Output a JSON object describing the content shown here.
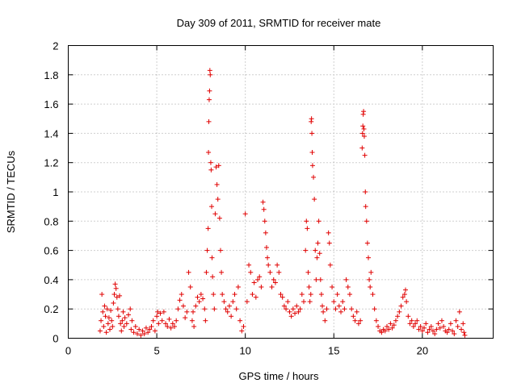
{
  "chart_data": {
    "type": "scatter",
    "title": "Day 309 of 2011, SRMTID for receiver mate",
    "xlabel": "GPS time / hours",
    "ylabel": "SRMTID / TECUs",
    "xlim": [
      0,
      24
    ],
    "ylim": [
      0,
      2
    ],
    "xticks": [
      0,
      5,
      10,
      15,
      20
    ],
    "xtick_labels": [
      "0",
      "5",
      "10",
      "15",
      "20"
    ],
    "yticks": [
      0,
      0.2,
      0.4,
      0.6,
      0.8,
      1,
      1.2,
      1.4,
      1.6,
      1.8,
      2
    ],
    "ytick_labels": [
      "0",
      "0.2",
      "0.4",
      "0.6",
      "0.8",
      "1",
      "1.2",
      "1.4",
      "1.6",
      "1.8",
      "2"
    ],
    "grid": true,
    "marker": "+",
    "color": "#e00000",
    "series": [
      {
        "name": "SRMTID",
        "points": [
          [
            1.8,
            0.05
          ],
          [
            1.85,
            0.12
          ],
          [
            1.9,
            0.3
          ],
          [
            1.95,
            0.18
          ],
          [
            2.0,
            0.08
          ],
          [
            2.05,
            0.22
          ],
          [
            2.1,
            0.15
          ],
          [
            2.15,
            0.04
          ],
          [
            2.2,
            0.2
          ],
          [
            2.25,
            0.1
          ],
          [
            2.3,
            0.14
          ],
          [
            2.35,
            0.06
          ],
          [
            2.4,
            0.19
          ],
          [
            2.45,
            0.12
          ],
          [
            2.5,
            0.08
          ],
          [
            2.55,
            0.24
          ],
          [
            2.6,
            0.3
          ],
          [
            2.65,
            0.37
          ],
          [
            2.7,
            0.34
          ],
          [
            2.75,
            0.28
          ],
          [
            2.8,
            0.2
          ],
          [
            2.85,
            0.15
          ],
          [
            2.9,
            0.29
          ],
          [
            2.95,
            0.1
          ],
          [
            3.0,
            0.05
          ],
          [
            3.05,
            0.12
          ],
          [
            3.1,
            0.18
          ],
          [
            3.15,
            0.08
          ],
          [
            3.2,
            0.14
          ],
          [
            3.3,
            0.1
          ],
          [
            3.4,
            0.16
          ],
          [
            3.5,
            0.2
          ],
          [
            3.55,
            0.06
          ],
          [
            3.6,
            0.12
          ],
          [
            3.7,
            0.04
          ],
          [
            3.8,
            0.08
          ],
          [
            3.9,
            0.03
          ],
          [
            4.0,
            0.06
          ],
          [
            4.1,
            0.02
          ],
          [
            4.2,
            0.05
          ],
          [
            4.3,
            0.03
          ],
          [
            4.4,
            0.07
          ],
          [
            4.5,
            0.04
          ],
          [
            4.6,
            0.06
          ],
          [
            4.7,
            0.08
          ],
          [
            4.8,
            0.12
          ],
          [
            4.9,
            0.05
          ],
          [
            5.0,
            0.15
          ],
          [
            5.05,
            0.18
          ],
          [
            5.1,
            0.1
          ],
          [
            5.2,
            0.17
          ],
          [
            5.3,
            0.12
          ],
          [
            5.4,
            0.18
          ],
          [
            5.5,
            0.1
          ],
          [
            5.6,
            0.08
          ],
          [
            5.7,
            0.13
          ],
          [
            5.8,
            0.07
          ],
          [
            5.9,
            0.1
          ],
          [
            6.0,
            0.08
          ],
          [
            6.1,
            0.12
          ],
          [
            6.2,
            0.2
          ],
          [
            6.3,
            0.26
          ],
          [
            6.4,
            0.3
          ],
          [
            6.5,
            0.22
          ],
          [
            6.6,
            0.14
          ],
          [
            6.7,
            0.18
          ],
          [
            6.8,
            0.45
          ],
          [
            6.9,
            0.35
          ],
          [
            7.0,
            0.12
          ],
          [
            7.05,
            0.18
          ],
          [
            7.1,
            0.08
          ],
          [
            7.2,
            0.22
          ],
          [
            7.3,
            0.28
          ],
          [
            7.4,
            0.25
          ],
          [
            7.5,
            0.3
          ],
          [
            7.6,
            0.27
          ],
          [
            7.7,
            0.2
          ],
          [
            7.75,
            0.12
          ],
          [
            7.8,
            0.45
          ],
          [
            7.85,
            0.6
          ],
          [
            7.9,
            0.75
          ],
          [
            7.92,
            1.27
          ],
          [
            7.94,
            1.48
          ],
          [
            7.96,
            1.63
          ],
          [
            7.98,
            1.69
          ],
          [
            8.0,
            1.83
          ],
          [
            8.02,
            1.8
          ],
          [
            8.05,
            1.2
          ],
          [
            8.07,
            1.15
          ],
          [
            8.1,
            0.9
          ],
          [
            8.12,
            0.55
          ],
          [
            8.15,
            0.42
          ],
          [
            8.2,
            0.3
          ],
          [
            8.25,
            0.2
          ],
          [
            8.3,
            0.85
          ],
          [
            8.35,
            1.17
          ],
          [
            8.4,
            1.05
          ],
          [
            8.45,
            0.95
          ],
          [
            8.5,
            1.18
          ],
          [
            8.55,
            0.82
          ],
          [
            8.6,
            0.6
          ],
          [
            8.65,
            0.45
          ],
          [
            8.7,
            0.3
          ],
          [
            8.8,
            0.25
          ],
          [
            8.9,
            0.2
          ],
          [
            9.0,
            0.18
          ],
          [
            9.1,
            0.22
          ],
          [
            9.2,
            0.15
          ],
          [
            9.3,
            0.25
          ],
          [
            9.4,
            0.3
          ],
          [
            9.5,
            0.2
          ],
          [
            9.6,
            0.35
          ],
          [
            9.7,
            0.12
          ],
          [
            9.8,
            0.05
          ],
          [
            9.9,
            0.08
          ],
          [
            10.0,
            0.85
          ],
          [
            10.1,
            0.25
          ],
          [
            10.2,
            0.5
          ],
          [
            10.3,
            0.45
          ],
          [
            10.4,
            0.3
          ],
          [
            10.5,
            0.38
          ],
          [
            10.6,
            0.28
          ],
          [
            10.7,
            0.4
          ],
          [
            10.8,
            0.42
          ],
          [
            10.9,
            0.35
          ],
          [
            11.0,
            0.93
          ],
          [
            11.05,
            0.88
          ],
          [
            11.1,
            0.8
          ],
          [
            11.15,
            0.72
          ],
          [
            11.2,
            0.62
          ],
          [
            11.25,
            0.55
          ],
          [
            11.3,
            0.5
          ],
          [
            11.4,
            0.45
          ],
          [
            11.5,
            0.35
          ],
          [
            11.6,
            0.4
          ],
          [
            11.7,
            0.38
          ],
          [
            11.8,
            0.5
          ],
          [
            11.9,
            0.45
          ],
          [
            12.0,
            0.3
          ],
          [
            12.1,
            0.28
          ],
          [
            12.2,
            0.22
          ],
          [
            12.3,
            0.2
          ],
          [
            12.4,
            0.25
          ],
          [
            12.5,
            0.18
          ],
          [
            12.6,
            0.15
          ],
          [
            12.7,
            0.2
          ],
          [
            12.8,
            0.17
          ],
          [
            12.9,
            0.22
          ],
          [
            13.0,
            0.18
          ],
          [
            13.1,
            0.2
          ],
          [
            13.2,
            0.3
          ],
          [
            13.3,
            0.25
          ],
          [
            13.4,
            0.6
          ],
          [
            13.45,
            0.8
          ],
          [
            13.5,
            0.75
          ],
          [
            13.55,
            0.45
          ],
          [
            13.6,
            0.35
          ],
          [
            13.65,
            0.25
          ],
          [
            13.7,
            0.3
          ],
          [
            13.72,
            1.48
          ],
          [
            13.74,
            1.5
          ],
          [
            13.76,
            1.4
          ],
          [
            13.78,
            1.27
          ],
          [
            13.8,
            1.18
          ],
          [
            13.85,
            1.1
          ],
          [
            13.9,
            0.95
          ],
          [
            13.95,
            0.6
          ],
          [
            14.0,
            0.4
          ],
          [
            14.05,
            0.55
          ],
          [
            14.1,
            0.65
          ],
          [
            14.15,
            0.8
          ],
          [
            14.2,
            0.58
          ],
          [
            14.25,
            0.4
          ],
          [
            14.3,
            0.3
          ],
          [
            14.35,
            0.22
          ],
          [
            14.4,
            0.18
          ],
          [
            14.5,
            0.12
          ],
          [
            14.6,
            0.2
          ],
          [
            14.7,
            0.72
          ],
          [
            14.75,
            0.65
          ],
          [
            14.8,
            0.5
          ],
          [
            14.9,
            0.35
          ],
          [
            15.0,
            0.25
          ],
          [
            15.1,
            0.2
          ],
          [
            15.2,
            0.3
          ],
          [
            15.3,
            0.22
          ],
          [
            15.4,
            0.18
          ],
          [
            15.5,
            0.25
          ],
          [
            15.6,
            0.2
          ],
          [
            15.7,
            0.4
          ],
          [
            15.8,
            0.35
          ],
          [
            15.9,
            0.3
          ],
          [
            16.0,
            0.2
          ],
          [
            16.1,
            0.15
          ],
          [
            16.2,
            0.12
          ],
          [
            16.3,
            0.18
          ],
          [
            16.4,
            0.1
          ],
          [
            16.5,
            0.12
          ],
          [
            16.6,
            1.3
          ],
          [
            16.62,
            1.4
          ],
          [
            16.64,
            1.45
          ],
          [
            16.66,
            1.53
          ],
          [
            16.68,
            1.55
          ],
          [
            16.7,
            1.43
          ],
          [
            16.72,
            1.38
          ],
          [
            16.75,
            1.25
          ],
          [
            16.78,
            1.0
          ],
          [
            16.8,
            0.9
          ],
          [
            16.85,
            0.8
          ],
          [
            16.9,
            0.65
          ],
          [
            16.95,
            0.55
          ],
          [
            17.0,
            0.4
          ],
          [
            17.05,
            0.35
          ],
          [
            17.1,
            0.45
          ],
          [
            17.2,
            0.3
          ],
          [
            17.3,
            0.2
          ],
          [
            17.4,
            0.12
          ],
          [
            17.5,
            0.08
          ],
          [
            17.6,
            0.05
          ],
          [
            17.7,
            0.04
          ],
          [
            17.8,
            0.06
          ],
          [
            17.9,
            0.05
          ],
          [
            18.0,
            0.08
          ],
          [
            18.1,
            0.06
          ],
          [
            18.2,
            0.1
          ],
          [
            18.3,
            0.07
          ],
          [
            18.4,
            0.09
          ],
          [
            18.5,
            0.12
          ],
          [
            18.6,
            0.15
          ],
          [
            18.7,
            0.18
          ],
          [
            18.8,
            0.22
          ],
          [
            18.9,
            0.28
          ],
          [
            19.0,
            0.3
          ],
          [
            19.05,
            0.33
          ],
          [
            19.1,
            0.25
          ],
          [
            19.2,
            0.15
          ],
          [
            19.3,
            0.1
          ],
          [
            19.4,
            0.12
          ],
          [
            19.5,
            0.08
          ],
          [
            19.6,
            0.1
          ],
          [
            19.7,
            0.12
          ],
          [
            19.8,
            0.06
          ],
          [
            19.9,
            0.08
          ],
          [
            20.0,
            0.05
          ],
          [
            20.1,
            0.07
          ],
          [
            20.2,
            0.1
          ],
          [
            20.3,
            0.04
          ],
          [
            20.4,
            0.06
          ],
          [
            20.5,
            0.08
          ],
          [
            20.6,
            0.05
          ],
          [
            20.7,
            0.03
          ],
          [
            20.8,
            0.06
          ],
          [
            20.9,
            0.1
          ],
          [
            21.0,
            0.07
          ],
          [
            21.1,
            0.12
          ],
          [
            21.2,
            0.08
          ],
          [
            21.3,
            0.05
          ],
          [
            21.4,
            0.04
          ],
          [
            21.5,
            0.06
          ],
          [
            21.6,
            0.1
          ],
          [
            21.7,
            0.05
          ],
          [
            21.8,
            0.03
          ],
          [
            21.9,
            0.12
          ],
          [
            22.0,
            0.08
          ],
          [
            22.1,
            0.18
          ],
          [
            22.2,
            0.06
          ],
          [
            22.3,
            0.1
          ],
          [
            22.35,
            0.04
          ],
          [
            22.4,
            0.02
          ]
        ]
      }
    ]
  }
}
